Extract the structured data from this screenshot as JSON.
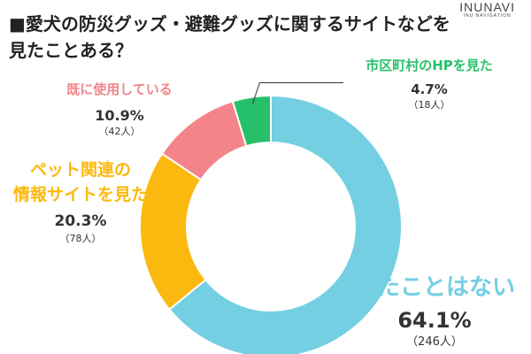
{
  "title": "■愛犬の防災グッズ・避難グッズに関するサイトなどを\n見たことある？",
  "logo": {
    "main": "INUNAVI",
    "sub": "INU NAVIGATION"
  },
  "chart_data": {
    "type": "pie",
    "donut": true,
    "title": "■愛犬の防災グッズ・避難グッズに関するサイトなどを見たことある？",
    "slices": [
      {
        "label": "見たことはない",
        "percent": 64.1,
        "count": 246,
        "count_text": "（246人）",
        "color": "#74cfe3"
      },
      {
        "label": "ペット関連の\n情報サイトを見た",
        "percent": 20.3,
        "count": 78,
        "count_text": "（78人）",
        "color": "#fbb90f"
      },
      {
        "label": "既に使用している",
        "percent": 10.9,
        "count": 42,
        "count_text": "（42人）",
        "color": "#f3858a"
      },
      {
        "label": "市区町村のHPを見た",
        "percent": 4.7,
        "count": 18,
        "count_text": "（18人）",
        "color": "#27c06a"
      }
    ]
  }
}
